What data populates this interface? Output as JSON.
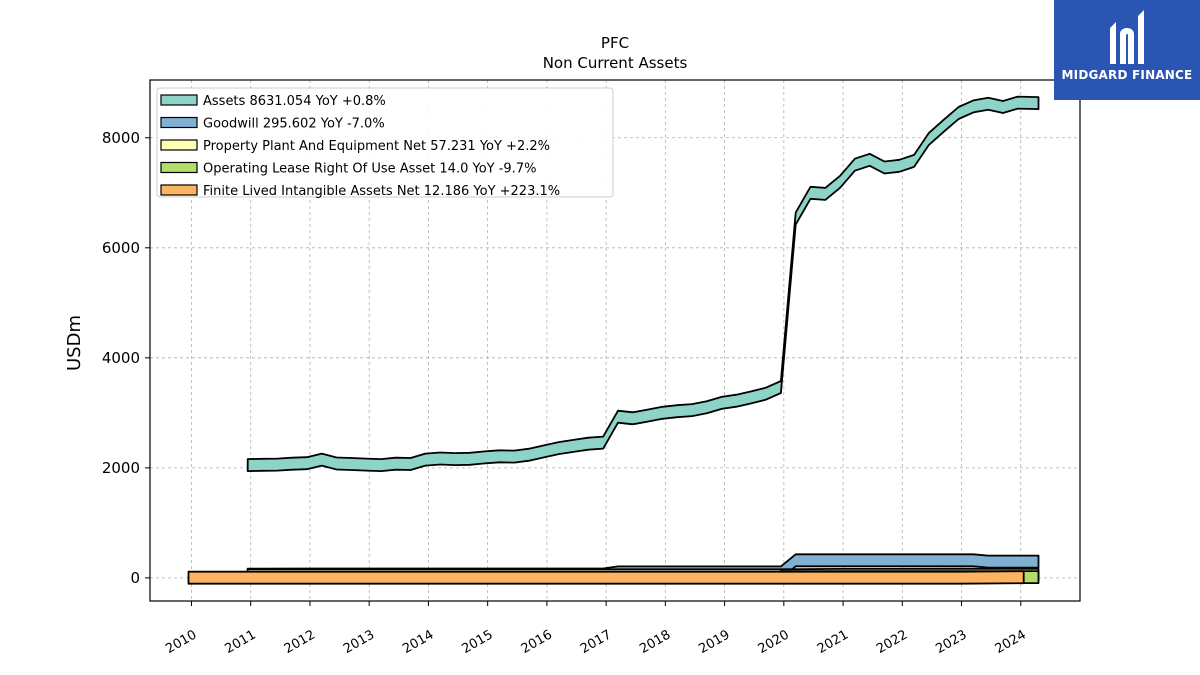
{
  "chart_data": {
    "type": "area",
    "title": "PFC",
    "subtitle": "Non Current  Assets",
    "ylabel": "USDm",
    "xlabel": "",
    "ylim": [
      -420,
      9050
    ],
    "xlim": [
      2009.3,
      2025.0
    ],
    "x_ticks": [
      "2010",
      "2011",
      "2012",
      "2013",
      "2014",
      "2015",
      "2016",
      "2017",
      "2018",
      "2019",
      "2020",
      "2021",
      "2022",
      "2023",
      "2024"
    ],
    "y_ticks": [
      "0",
      "2000",
      "4000",
      "6000",
      "8000"
    ],
    "grid": true,
    "legend_position": "top-left",
    "series": [
      {
        "name": "Assets  8631.054 YoY +0.8%",
        "color": "#8dd3c7",
        "x": [
          2010.95,
          2011.2,
          2011.45,
          2011.7,
          2011.95,
          2012.2,
          2012.45,
          2012.7,
          2012.95,
          2013.2,
          2013.45,
          2013.7,
          2013.95,
          2014.2,
          2014.45,
          2014.7,
          2014.95,
          2015.2,
          2015.45,
          2015.7,
          2015.95,
          2016.2,
          2016.45,
          2016.7,
          2016.95,
          2017.2,
          2017.45,
          2017.7,
          2017.95,
          2018.2,
          2018.45,
          2018.7,
          2018.95,
          2019.2,
          2019.45,
          2019.7,
          2019.95,
          2020.2,
          2020.45,
          2020.7,
          2020.95,
          2021.2,
          2021.45,
          2021.7,
          2021.95,
          2022.2,
          2022.45,
          2022.7,
          2022.95,
          2023.2,
          2023.45,
          2023.7,
          2023.95,
          2024.3
        ],
        "values": [
          2050,
          2055,
          2060,
          2075,
          2085,
          2150,
          2080,
          2070,
          2060,
          2050,
          2075,
          2070,
          2150,
          2170,
          2160,
          2165,
          2190,
          2210,
          2205,
          2240,
          2300,
          2360,
          2400,
          2440,
          2460,
          2930,
          2900,
          2950,
          3000,
          3030,
          3050,
          3100,
          3180,
          3220,
          3280,
          3350,
          3470,
          6530,
          7000,
          6980,
          7200,
          7510,
          7600,
          7460,
          7490,
          7580,
          7980,
          8220,
          8450,
          8570,
          8620,
          8560,
          8640,
          8631
        ]
      },
      {
        "name": "Goodwill  295.602 YoY -7.0%",
        "color": "#80b1d3",
        "x": [
          2010.95,
          2011.95,
          2012.95,
          2013.95,
          2014.95,
          2015.95,
          2016.95,
          2017.2,
          2017.95,
          2018.95,
          2019.95,
          2020.2,
          2020.95,
          2021.95,
          2022.95,
          2023.2,
          2023.45,
          2024.3
        ],
        "values": [
          60,
          62,
          62,
          62,
          62,
          62,
          62,
          100,
          100,
          100,
          100,
          320,
          320,
          320,
          320,
          320,
          296,
          296
        ]
      },
      {
        "name": "Property Plant And Equipment Net  57.231 YoY +2.2%",
        "color": "#ffffb3",
        "x": [
          2010.95,
          2012.95,
          2014.95,
          2016.95,
          2018.95,
          2019.95,
          2020.95,
          2022.95,
          2024.3
        ],
        "values": [
          45,
          46,
          46,
          47,
          47,
          48,
          55,
          56,
          57
        ]
      },
      {
        "name": "Operating Lease Right Of Use Asset  14.0 YoY -9.7%",
        "color": "#b3de69",
        "x": [
          2019.95,
          2020.95,
          2022.95,
          2024.05,
          2024.3
        ],
        "values": [
          15,
          15,
          15,
          15,
          14
        ]
      },
      {
        "name": "Finite Lived Intangible Assets Net  12.186 YoY +223.1%",
        "color": "#fdb462",
        "x": [
          2009.95,
          2011.95,
          2013.95,
          2015.95,
          2017.95,
          2019.95,
          2020.95,
          2022.95,
          2024.05
        ],
        "values": [
          4,
          4,
          4,
          4,
          4,
          4,
          4,
          4,
          12
        ]
      }
    ]
  },
  "logo": {
    "text": "MIDGARD FINANCE",
    "color": "#2b55b3"
  }
}
